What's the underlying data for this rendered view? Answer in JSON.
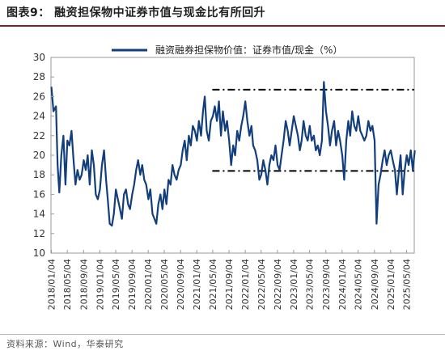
{
  "header": {
    "title": "图表9：   融资担保物中证券市值与现金比有所回升"
  },
  "footer": {
    "source": "资料来源：Wind，华泰研究"
  },
  "colors": {
    "accent": "#8a1c24",
    "series": "#123e7c",
    "reference": "#000000"
  },
  "chart_data": {
    "type": "line",
    "ylim": [
      10,
      30
    ],
    "yticks": [
      10,
      12,
      14,
      16,
      18,
      20,
      22,
      24,
      26,
      28,
      30
    ],
    "xlim": [
      "2018-01",
      "2025-07"
    ],
    "xticks": [
      "2018/01/04",
      "2018/05/04",
      "2018/09/04",
      "2019/01/04",
      "2019/05/04",
      "2019/09/04",
      "2020/01/04",
      "2020/05/04",
      "2020/09/04",
      "2021/01/04",
      "2021/05/04",
      "2021/09/04",
      "2022/01/04",
      "2022/05/04",
      "2022/09/04",
      "2023/01/04",
      "2023/05/04",
      "2023/09/04",
      "2024/01/04",
      "2024/05/04",
      "2024/09/04",
      "2025/01/04",
      "2025/05/04"
    ],
    "grid": false,
    "legend_position": "top",
    "series": [
      {
        "name": "融资融券担保物价值：证券市值/现金（%）",
        "points": [
          [
            "2018-01-04",
            27.0
          ],
          [
            "2018-01-20",
            24.5
          ],
          [
            "2018-02-08",
            25.0
          ],
          [
            "2018-02-20",
            19.0
          ],
          [
            "2018-03-05",
            16.2
          ],
          [
            "2018-03-20",
            20.0
          ],
          [
            "2018-04-05",
            22.0
          ],
          [
            "2018-04-20",
            17.0
          ],
          [
            "2018-05-05",
            21.5
          ],
          [
            "2018-05-20",
            21.0
          ],
          [
            "2018-06-05",
            22.5
          ],
          [
            "2018-06-20",
            19.5
          ],
          [
            "2018-07-05",
            17.0
          ],
          [
            "2018-07-20",
            18.5
          ],
          [
            "2018-08-05",
            17.5
          ],
          [
            "2018-08-20",
            18.0
          ],
          [
            "2018-09-05",
            19.5
          ],
          [
            "2018-09-20",
            18.5
          ],
          [
            "2018-10-05",
            20.0
          ],
          [
            "2018-10-20",
            17.0
          ],
          [
            "2018-11-05",
            20.5
          ],
          [
            "2018-11-20",
            19.0
          ],
          [
            "2018-12-05",
            16.0
          ],
          [
            "2018-12-20",
            15.5
          ],
          [
            "2019-01-05",
            16.5
          ],
          [
            "2019-01-20",
            19.0
          ],
          [
            "2019-02-05",
            20.5
          ],
          [
            "2019-02-20",
            17.5
          ],
          [
            "2019-03-05",
            15.5
          ],
          [
            "2019-03-20",
            13.0
          ],
          [
            "2019-04-05",
            12.8
          ],
          [
            "2019-04-20",
            14.0
          ],
          [
            "2019-05-05",
            16.5
          ],
          [
            "2019-05-20",
            15.5
          ],
          [
            "2019-06-05",
            14.5
          ],
          [
            "2019-06-20",
            13.5
          ],
          [
            "2019-07-05",
            16.0
          ],
          [
            "2019-07-20",
            16.5
          ],
          [
            "2019-08-05",
            15.0
          ],
          [
            "2019-08-20",
            14.5
          ],
          [
            "2019-09-05",
            16.0
          ],
          [
            "2019-09-20",
            17.0
          ],
          [
            "2019-10-05",
            18.5
          ],
          [
            "2019-10-20",
            19.5
          ],
          [
            "2019-11-05",
            18.0
          ],
          [
            "2019-11-20",
            19.0
          ],
          [
            "2019-12-05",
            17.5
          ],
          [
            "2019-12-20",
            17.0
          ],
          [
            "2020-01-05",
            15.5
          ],
          [
            "2020-01-20",
            16.5
          ],
          [
            "2020-02-05",
            14.0
          ],
          [
            "2020-02-20",
            13.5
          ],
          [
            "2020-03-05",
            13.0
          ],
          [
            "2020-03-20",
            15.0
          ],
          [
            "2020-04-05",
            16.0
          ],
          [
            "2020-04-20",
            14.5
          ],
          [
            "2020-05-05",
            16.5
          ],
          [
            "2020-05-20",
            15.0
          ],
          [
            "2020-06-05",
            17.5
          ],
          [
            "2020-06-20",
            17.0
          ],
          [
            "2020-07-05",
            19.0
          ],
          [
            "2020-07-20",
            18.0
          ],
          [
            "2020-08-05",
            17.5
          ],
          [
            "2020-08-20",
            18.5
          ],
          [
            "2020-09-05",
            19.0
          ],
          [
            "2020-09-20",
            20.5
          ],
          [
            "2020-10-05",
            21.5
          ],
          [
            "2020-10-20",
            19.5
          ],
          [
            "2020-11-05",
            22.0
          ],
          [
            "2020-11-20",
            21.0
          ],
          [
            "2020-12-05",
            23.0
          ],
          [
            "2020-12-20",
            22.5
          ],
          [
            "2021-01-05",
            21.5
          ],
          [
            "2021-01-20",
            23.5
          ],
          [
            "2021-02-05",
            22.0
          ],
          [
            "2021-02-20",
            24.5
          ],
          [
            "2021-03-05",
            26.0
          ],
          [
            "2021-03-20",
            22.5
          ],
          [
            "2021-04-05",
            21.5
          ],
          [
            "2021-04-20",
            23.5
          ],
          [
            "2021-05-05",
            24.0
          ],
          [
            "2021-05-20",
            25.0
          ],
          [
            "2021-06-05",
            23.5
          ],
          [
            "2021-06-20",
            25.5
          ],
          [
            "2021-07-05",
            22.0
          ],
          [
            "2021-07-20",
            24.5
          ],
          [
            "2021-08-05",
            22.5
          ],
          [
            "2021-08-20",
            23.5
          ],
          [
            "2021-09-05",
            21.5
          ],
          [
            "2021-09-20",
            19.0
          ],
          [
            "2021-10-05",
            21.0
          ],
          [
            "2021-10-20",
            20.0
          ],
          [
            "2021-11-05",
            22.5
          ],
          [
            "2021-11-20",
            21.5
          ],
          [
            "2021-12-05",
            23.0
          ],
          [
            "2021-12-20",
            24.0
          ],
          [
            "2022-01-05",
            25.5
          ],
          [
            "2022-01-20",
            23.5
          ],
          [
            "2022-02-05",
            22.0
          ],
          [
            "2022-02-20",
            23.0
          ],
          [
            "2022-03-05",
            21.0
          ],
          [
            "2022-03-20",
            20.5
          ],
          [
            "2022-04-05",
            19.5
          ],
          [
            "2022-04-20",
            17.5
          ],
          [
            "2022-05-05",
            18.0
          ],
          [
            "2022-05-20",
            19.5
          ],
          [
            "2022-06-05",
            18.5
          ],
          [
            "2022-06-20",
            17.0
          ],
          [
            "2022-07-05",
            19.0
          ],
          [
            "2022-07-20",
            20.0
          ],
          [
            "2022-08-05",
            19.5
          ],
          [
            "2022-08-20",
            21.0
          ],
          [
            "2022-09-05",
            19.0
          ],
          [
            "2022-09-20",
            18.5
          ],
          [
            "2022-10-05",
            20.0
          ],
          [
            "2022-10-20",
            21.5
          ],
          [
            "2022-11-05",
            23.5
          ],
          [
            "2022-11-20",
            22.5
          ],
          [
            "2022-12-05",
            21.0
          ],
          [
            "2022-12-20",
            22.5
          ],
          [
            "2023-01-05",
            24.0
          ],
          [
            "2023-01-20",
            23.0
          ],
          [
            "2023-02-05",
            22.0
          ],
          [
            "2023-02-20",
            20.5
          ],
          [
            "2023-03-05",
            21.5
          ],
          [
            "2023-03-20",
            23.5
          ],
          [
            "2023-04-05",
            22.0
          ],
          [
            "2023-04-20",
            21.5
          ],
          [
            "2023-05-05",
            23.0
          ],
          [
            "2023-05-20",
            21.5
          ],
          [
            "2023-06-05",
            22.0
          ],
          [
            "2023-06-20",
            20.5
          ],
          [
            "2023-07-05",
            21.0
          ],
          [
            "2023-07-20",
            20.0
          ],
          [
            "2023-08-05",
            21.5
          ],
          [
            "2023-08-20",
            27.5
          ],
          [
            "2023-09-05",
            24.5
          ],
          [
            "2023-09-20",
            23.0
          ],
          [
            "2023-10-05",
            21.0
          ],
          [
            "2023-10-20",
            22.5
          ],
          [
            "2023-11-05",
            23.5
          ],
          [
            "2023-11-20",
            21.0
          ],
          [
            "2023-12-05",
            22.5
          ],
          [
            "2023-12-20",
            21.5
          ],
          [
            "2024-01-05",
            20.0
          ],
          [
            "2024-01-20",
            17.5
          ],
          [
            "2024-02-05",
            21.5
          ],
          [
            "2024-02-20",
            23.5
          ],
          [
            "2024-03-05",
            22.0
          ],
          [
            "2024-03-20",
            24.5
          ],
          [
            "2024-04-05",
            23.0
          ],
          [
            "2024-04-20",
            22.5
          ],
          [
            "2024-05-05",
            24.0
          ],
          [
            "2024-05-20",
            22.5
          ],
          [
            "2024-06-05",
            22.0
          ],
          [
            "2024-06-20",
            21.5
          ],
          [
            "2024-07-05",
            22.0
          ],
          [
            "2024-07-20",
            23.5
          ],
          [
            "2024-08-05",
            22.5
          ],
          [
            "2024-08-20",
            23.0
          ],
          [
            "2024-09-05",
            21.5
          ],
          [
            "2024-09-20",
            13.0
          ],
          [
            "2024-10-05",
            17.0
          ],
          [
            "2024-10-20",
            18.0
          ],
          [
            "2024-11-05",
            19.5
          ],
          [
            "2024-11-20",
            20.5
          ],
          [
            "2024-12-05",
            19.0
          ],
          [
            "2024-12-20",
            20.0
          ],
          [
            "2025-01-05",
            20.5
          ],
          [
            "2025-01-20",
            19.5
          ],
          [
            "2025-02-05",
            18.5
          ],
          [
            "2025-02-20",
            16.0
          ],
          [
            "2025-03-05",
            18.0
          ],
          [
            "2025-03-20",
            20.0
          ],
          [
            "2025-04-05",
            16.0
          ],
          [
            "2025-04-20",
            18.5
          ],
          [
            "2025-05-05",
            20.0
          ],
          [
            "2025-05-20",
            19.0
          ],
          [
            "2025-06-05",
            20.5
          ],
          [
            "2025-06-20",
            18.5
          ],
          [
            "2025-07-05",
            20.5
          ]
        ]
      }
    ],
    "reference_lines": [
      {
        "y": 26.7,
        "from": "2021-05-01",
        "to": "2025-06-30",
        "style": "dash-dot"
      },
      {
        "y": 18.4,
        "from": "2021-05-01",
        "to": "2025-06-30",
        "style": "dash-dot"
      }
    ]
  }
}
